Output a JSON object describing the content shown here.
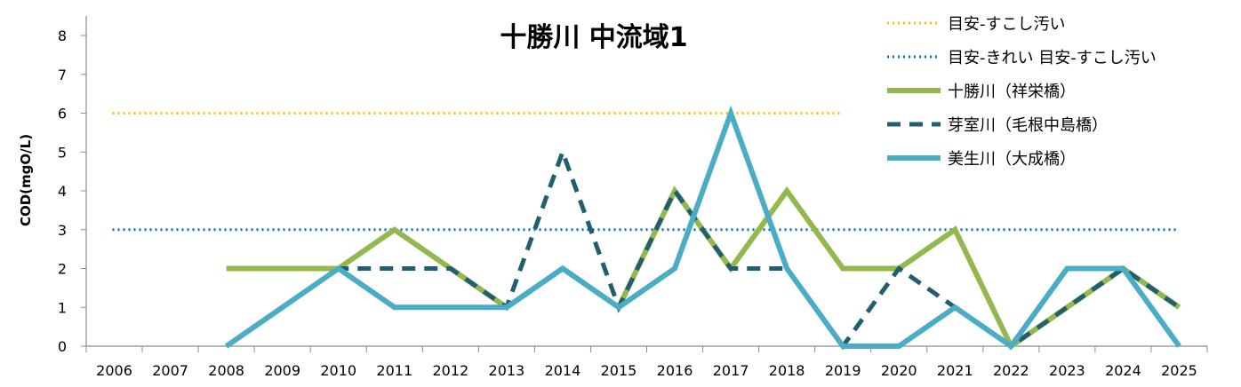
{
  "chart_data": {
    "type": "line",
    "title": "十勝川 中流域1",
    "ylabel": "COD(mgO/L)",
    "xlabel": "",
    "ylim": [
      0,
      8
    ],
    "yticks": [
      "0",
      "1",
      "2",
      "3",
      "4",
      "5",
      "6",
      "7",
      "8"
    ],
    "categories": [
      "2006",
      "2007",
      "2008",
      "2009",
      "2010",
      "2011",
      "2012",
      "2013",
      "2014",
      "2015",
      "2016",
      "2017",
      "2018",
      "2019",
      "2020",
      "2021",
      "2022",
      "2023",
      "2024",
      "2025"
    ],
    "grid": false,
    "legend_position": "top-right",
    "reference_lines": [
      {
        "name": "目安-すこし汚い",
        "value": 6,
        "from": "2006",
        "to": "2019",
        "color": "#FFC000",
        "style": "dotted"
      },
      {
        "name": "目安-きれい 目安-すこし汚い",
        "value": 3,
        "from": "2006",
        "to": "2025",
        "color": "#0070C0",
        "style": "dotted"
      }
    ],
    "series": [
      {
        "name": "十勝川（祥栄橋）",
        "color": "#92B84E",
        "style": "solid",
        "width": 6,
        "values": [
          null,
          null,
          2,
          2,
          2,
          3,
          2,
          1,
          2,
          1,
          4,
          2,
          4,
          2,
          2,
          3,
          0,
          1,
          2,
          1
        ]
      },
      {
        "name": "芽室川（毛根中島橋）",
        "color": "#215F6E",
        "style": "dashed",
        "width": 5,
        "values": [
          null,
          null,
          0,
          1,
          2,
          2,
          2,
          1,
          5,
          1,
          4,
          2,
          2,
          0,
          2,
          1,
          0,
          1,
          2,
          1
        ]
      },
      {
        "name": "美生川（大成橋）",
        "color": "#4BACC6",
        "style": "solid",
        "width": 6,
        "values": [
          null,
          null,
          0,
          1,
          2,
          1,
          1,
          1,
          2,
          1,
          2,
          6,
          2,
          0,
          0,
          1,
          0,
          2,
          2,
          0
        ]
      }
    ]
  }
}
